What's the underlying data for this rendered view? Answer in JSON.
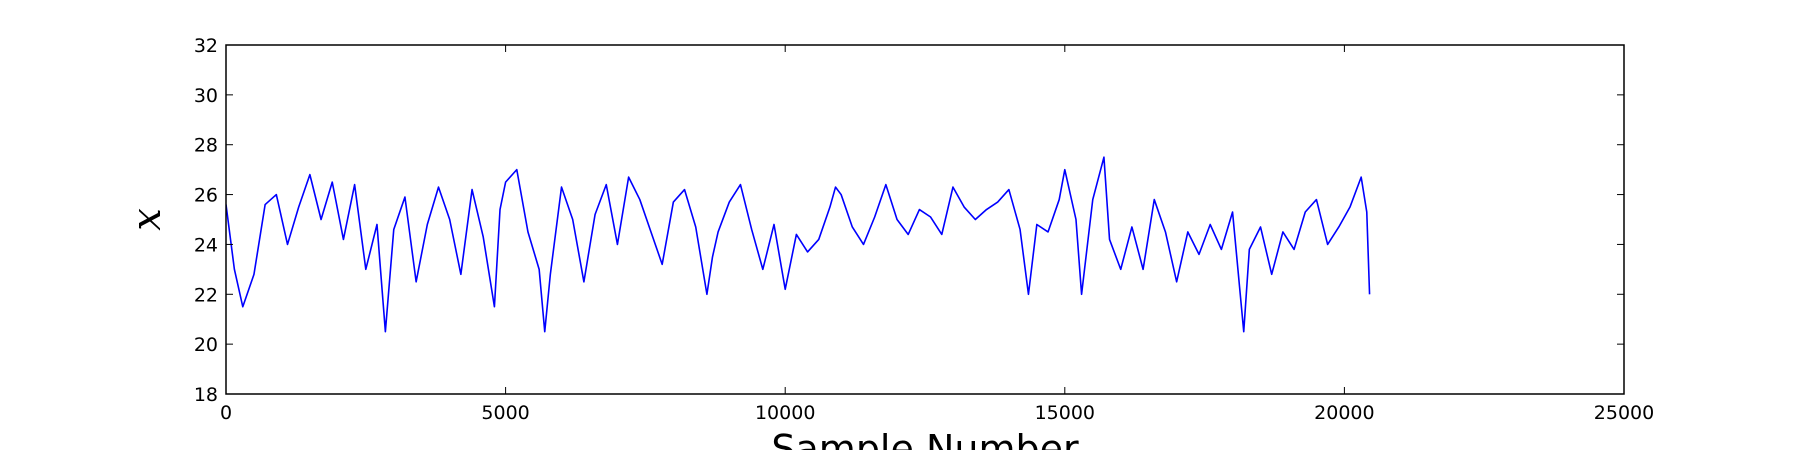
{
  "chart_data": {
    "type": "line",
    "title": "",
    "xlabel": "Sample Number",
    "ylabel": "x",
    "xlim": [
      0,
      25000
    ],
    "ylim": [
      18,
      32
    ],
    "xticks": [
      0,
      5000,
      10000,
      15000,
      20000,
      25000
    ],
    "yticks": [
      18,
      20,
      22,
      24,
      26,
      28,
      30,
      32
    ],
    "grid": false,
    "legend": "none",
    "series": [
      {
        "color": "#0000ff",
        "x": [
          0,
          150,
          300,
          500,
          700,
          900,
          1100,
          1300,
          1500,
          1700,
          1900,
          2100,
          2300,
          2500,
          2700,
          2850,
          3000,
          3200,
          3400,
          3600,
          3800,
          4000,
          4200,
          4400,
          4600,
          4800,
          4900,
          5000,
          5200,
          5400,
          5600,
          5700,
          5800,
          6000,
          6200,
          6400,
          6600,
          6800,
          7000,
          7200,
          7400,
          7600,
          7800,
          8000,
          8200,
          8400,
          8600,
          8700,
          8800,
          9000,
          9200,
          9400,
          9600,
          9800,
          10000,
          10200,
          10400,
          10600,
          10800,
          10900,
          11000,
          11200,
          11400,
          11600,
          11800,
          12000,
          12200,
          12400,
          12600,
          12800,
          13000,
          13200,
          13400,
          13600,
          13800,
          14000,
          14200,
          14350,
          14500,
          14700,
          14900,
          15000,
          15200,
          15300,
          15500,
          15700,
          15800,
          16000,
          16200,
          16400,
          16600,
          16800,
          17000,
          17200,
          17400,
          17600,
          17800,
          18000,
          18200,
          18300,
          18500,
          18700,
          18900,
          19100,
          19300,
          19500,
          19700,
          19900,
          20100,
          20300,
          20400,
          20450
        ],
        "y": [
          25.6,
          23.0,
          21.5,
          22.8,
          25.6,
          26.0,
          24.0,
          25.5,
          26.8,
          25.0,
          26.5,
          24.2,
          26.4,
          23.0,
          24.8,
          20.5,
          24.6,
          25.9,
          22.5,
          24.8,
          26.3,
          25.0,
          22.8,
          26.2,
          24.3,
          21.5,
          25.4,
          26.5,
          27.0,
          24.5,
          23.0,
          20.5,
          22.8,
          26.3,
          25.0,
          22.5,
          25.2,
          26.4,
          24.0,
          26.7,
          25.8,
          24.5,
          23.2,
          25.7,
          26.2,
          24.7,
          22.0,
          23.5,
          24.5,
          25.7,
          26.4,
          24.6,
          23.0,
          24.8,
          22.2,
          24.4,
          23.7,
          24.2,
          25.5,
          26.3,
          26.0,
          24.7,
          24.0,
          25.1,
          26.4,
          25.0,
          24.4,
          25.4,
          25.1,
          24.4,
          26.3,
          25.5,
          25.0,
          25.4,
          25.7,
          26.2,
          24.6,
          22.0,
          24.8,
          24.5,
          25.8,
          27.0,
          25.0,
          22.0,
          25.8,
          27.5,
          24.2,
          23.0,
          24.7,
          23.0,
          25.8,
          24.5,
          22.5,
          24.5,
          23.6,
          24.8,
          23.8,
          25.3,
          20.5,
          23.8,
          24.7,
          22.8,
          24.5,
          23.8,
          25.3,
          25.8,
          24.0,
          24.7,
          25.5,
          26.7,
          25.3,
          22.0
        ]
      }
    ]
  }
}
